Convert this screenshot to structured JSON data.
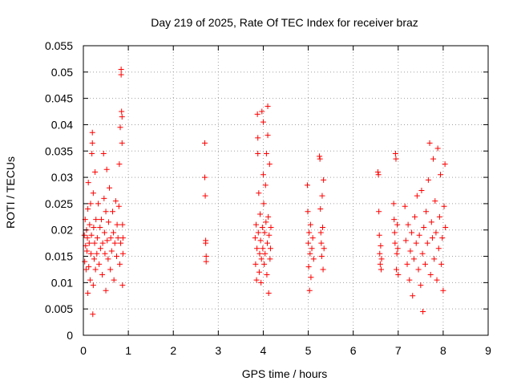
{
  "chart_data": {
    "type": "scatter",
    "title": "Day 219 of 2025, Rate Of TEC Index for receiver braz",
    "xlabel": "GPS time / hours",
    "ylabel": "ROTI / TECUs",
    "xlim": [
      0,
      9
    ],
    "ylim": [
      0,
      0.055
    ],
    "x_ticks": [
      "0",
      "1",
      "2",
      "3",
      "4",
      "5",
      "6",
      "7",
      "8",
      "9"
    ],
    "y_ticks": [
      "0",
      "0.005",
      "0.01",
      "0.015",
      "0.02",
      "0.025",
      "0.03",
      "0.035",
      "0.04",
      "0.045",
      "0.05",
      "0.055"
    ],
    "grid": true,
    "legend": "none",
    "marker": "plus",
    "color": "#ff0000",
    "series": [
      {
        "points": [
          [
            0.02,
            0.019
          ],
          [
            0.03,
            0.014
          ],
          [
            0.04,
            0.022
          ],
          [
            0.05,
            0.017
          ],
          [
            0.06,
            0.0125
          ],
          [
            0.07,
            0.02
          ],
          [
            0.08,
            0.016
          ],
          [
            0.09,
            0.0185
          ],
          [
            0.1,
            0.008
          ],
          [
            0.1,
            0.024
          ],
          [
            0.11,
            0.029
          ],
          [
            0.12,
            0.013
          ],
          [
            0.13,
            0.0175
          ],
          [
            0.14,
            0.021
          ],
          [
            0.15,
            0.0105
          ],
          [
            0.16,
            0.025
          ],
          [
            0.17,
            0.0155
          ],
          [
            0.18,
            0.019
          ],
          [
            0.19,
            0.0345
          ],
          [
            0.2,
            0.0385
          ],
          [
            0.2,
            0.0365
          ],
          [
            0.21,
            0.004
          ],
          [
            0.22,
            0.0095
          ],
          [
            0.22,
            0.027
          ],
          [
            0.23,
            0.0205
          ],
          [
            0.24,
            0.0145
          ],
          [
            0.25,
            0.0175
          ],
          [
            0.26,
            0.031
          ],
          [
            0.27,
            0.0125
          ],
          [
            0.28,
            0.022
          ],
          [
            0.3,
            0.0155
          ],
          [
            0.31,
            0.0185
          ],
          [
            0.33,
            0.025
          ],
          [
            0.35,
            0.0135
          ],
          [
            0.37,
            0.0205
          ],
          [
            0.38,
            0.0165
          ],
          [
            0.4,
            0.022
          ],
          [
            0.42,
            0.0115
          ],
          [
            0.43,
            0.0175
          ],
          [
            0.45,
            0.0345
          ],
          [
            0.46,
            0.026
          ],
          [
            0.47,
            0.0195
          ],
          [
            0.48,
            0.0155
          ],
          [
            0.5,
            0.0085
          ],
          [
            0.5,
            0.0235
          ],
          [
            0.52,
            0.0315
          ],
          [
            0.53,
            0.018
          ],
          [
            0.55,
            0.0145
          ],
          [
            0.56,
            0.0215
          ],
          [
            0.58,
            0.028
          ],
          [
            0.6,
            0.0125
          ],
          [
            0.61,
            0.0185
          ],
          [
            0.63,
            0.016
          ],
          [
            0.65,
            0.0235
          ],
          [
            0.67,
            0.0195
          ],
          [
            0.68,
            0.0105
          ],
          [
            0.7,
            0.0175
          ],
          [
            0.72,
            0.0255
          ],
          [
            0.74,
            0.015
          ],
          [
            0.75,
            0.021
          ],
          [
            0.77,
            0.0185
          ],
          [
            0.79,
            0.0245
          ],
          [
            0.8,
            0.0325
          ],
          [
            0.81,
            0.0135
          ],
          [
            0.82,
            0.0395
          ],
          [
            0.83,
            0.0175
          ],
          [
            0.84,
            0.0505
          ],
          [
            0.84,
            0.0495
          ],
          [
            0.85,
            0.0425
          ],
          [
            0.86,
            0.0415
          ],
          [
            0.86,
            0.0365
          ],
          [
            0.87,
            0.0095
          ],
          [
            0.87,
            0.021
          ],
          [
            0.88,
            0.0185
          ],
          [
            0.88,
            0.0155
          ],
          [
            2.7,
            0.0365
          ],
          [
            2.7,
            0.03
          ],
          [
            2.71,
            0.0265
          ],
          [
            2.72,
            0.018
          ],
          [
            2.72,
            0.0175
          ],
          [
            2.73,
            0.015
          ],
          [
            2.73,
            0.014
          ],
          [
            3.82,
            0.0185
          ],
          [
            3.83,
            0.0135
          ],
          [
            3.84,
            0.021
          ],
          [
            3.85,
            0.0105
          ],
          [
            3.86,
            0.0165
          ],
          [
            3.87,
            0.042
          ],
          [
            3.88,
            0.0345
          ],
          [
            3.88,
            0.0375
          ],
          [
            3.89,
            0.0195
          ],
          [
            3.9,
            0.027
          ],
          [
            3.91,
            0.012
          ],
          [
            3.92,
            0.0155
          ],
          [
            3.93,
            0.023
          ],
          [
            3.94,
            0.018
          ],
          [
            3.95,
            0.01
          ],
          [
            3.96,
            0.0145
          ],
          [
            3.97,
            0.0425
          ],
          [
            3.98,
            0.0205
          ],
          [
            3.99,
            0.0165
          ],
          [
            4.0,
            0.0405
          ],
          [
            4.0,
            0.0305
          ],
          [
            4.01,
            0.025
          ],
          [
            4.02,
            0.0135
          ],
          [
            4.03,
            0.0195
          ],
          [
            4.04,
            0.0155
          ],
          [
            4.05,
            0.0285
          ],
          [
            4.06,
            0.0215
          ],
          [
            4.07,
            0.0345
          ],
          [
            4.08,
            0.0115
          ],
          [
            4.09,
            0.0175
          ],
          [
            4.1,
            0.0435
          ],
          [
            4.1,
            0.038
          ],
          [
            4.11,
            0.0225
          ],
          [
            4.12,
            0.008
          ],
          [
            4.13,
            0.019
          ],
          [
            4.14,
            0.0325
          ],
          [
            4.15,
            0.0145
          ],
          [
            4.16,
            0.0165
          ],
          [
            4.17,
            0.0205
          ],
          [
            4.98,
            0.0285
          ],
          [
            4.99,
            0.0235
          ],
          [
            5.0,
            0.0175
          ],
          [
            5.01,
            0.013
          ],
          [
            5.02,
            0.0195
          ],
          [
            5.03,
            0.0085
          ],
          [
            5.04,
            0.0155
          ],
          [
            5.05,
            0.021
          ],
          [
            5.06,
            0.011
          ],
          [
            5.08,
            0.0165
          ],
          [
            5.1,
            0.0185
          ],
          [
            5.12,
            0.0145
          ],
          [
            5.25,
            0.034
          ],
          [
            5.26,
            0.0335
          ],
          [
            5.27,
            0.024
          ],
          [
            5.28,
            0.0195
          ],
          [
            5.29,
            0.0175
          ],
          [
            5.3,
            0.015
          ],
          [
            5.31,
            0.0265
          ],
          [
            5.32,
            0.0205
          ],
          [
            5.33,
            0.0125
          ],
          [
            5.34,
            0.0295
          ],
          [
            5.35,
            0.0165
          ],
          [
            6.55,
            0.031
          ],
          [
            6.56,
            0.0305
          ],
          [
            6.57,
            0.0235
          ],
          [
            6.58,
            0.019
          ],
          [
            6.59,
            0.0155
          ],
          [
            6.6,
            0.0135
          ],
          [
            6.61,
            0.017
          ],
          [
            6.62,
            0.0125
          ],
          [
            6.63,
            0.0145
          ],
          [
            6.9,
            0.025
          ],
          [
            6.91,
            0.022
          ],
          [
            6.92,
            0.0195
          ],
          [
            6.93,
            0.0175
          ],
          [
            6.94,
            0.0345
          ],
          [
            6.95,
            0.0335
          ],
          [
            6.96,
            0.0125
          ],
          [
            6.97,
            0.0155
          ],
          [
            6.98,
            0.021
          ],
          [
            6.99,
            0.0165
          ],
          [
            7.0,
            0.0115
          ],
          [
            7.15,
            0.0245
          ],
          [
            7.17,
            0.018
          ],
          [
            7.2,
            0.0135
          ],
          [
            7.22,
            0.021
          ],
          [
            7.25,
            0.0105
          ],
          [
            7.27,
            0.016
          ],
          [
            7.3,
            0.0195
          ],
          [
            7.32,
            0.0075
          ],
          [
            7.35,
            0.0145
          ],
          [
            7.37,
            0.0225
          ],
          [
            7.4,
            0.0175
          ],
          [
            7.42,
            0.0265
          ],
          [
            7.45,
            0.0125
          ],
          [
            7.47,
            0.019
          ],
          [
            7.5,
            0.0095
          ],
          [
            7.52,
            0.0275
          ],
          [
            7.54,
            0.0155
          ],
          [
            7.55,
            0.0045
          ],
          [
            7.57,
            0.0205
          ],
          [
            7.6,
            0.0135
          ],
          [
            7.62,
            0.0235
          ],
          [
            7.65,
            0.0175
          ],
          [
            7.67,
            0.0295
          ],
          [
            7.7,
            0.0365
          ],
          [
            7.72,
            0.0115
          ],
          [
            7.74,
            0.0215
          ],
          [
            7.76,
            0.0185
          ],
          [
            7.78,
            0.0335
          ],
          [
            7.8,
            0.0145
          ],
          [
            7.82,
            0.0255
          ],
          [
            7.84,
            0.0195
          ],
          [
            7.86,
            0.0105
          ],
          [
            7.88,
            0.0355
          ],
          [
            7.9,
            0.0165
          ],
          [
            7.92,
            0.0225
          ],
          [
            7.94,
            0.0305
          ],
          [
            7.96,
            0.0135
          ],
          [
            7.98,
            0.0185
          ],
          [
            8.0,
            0.0085
          ],
          [
            8.02,
            0.0245
          ],
          [
            8.04,
            0.0325
          ],
          [
            8.05,
            0.0205
          ]
        ]
      }
    ]
  }
}
